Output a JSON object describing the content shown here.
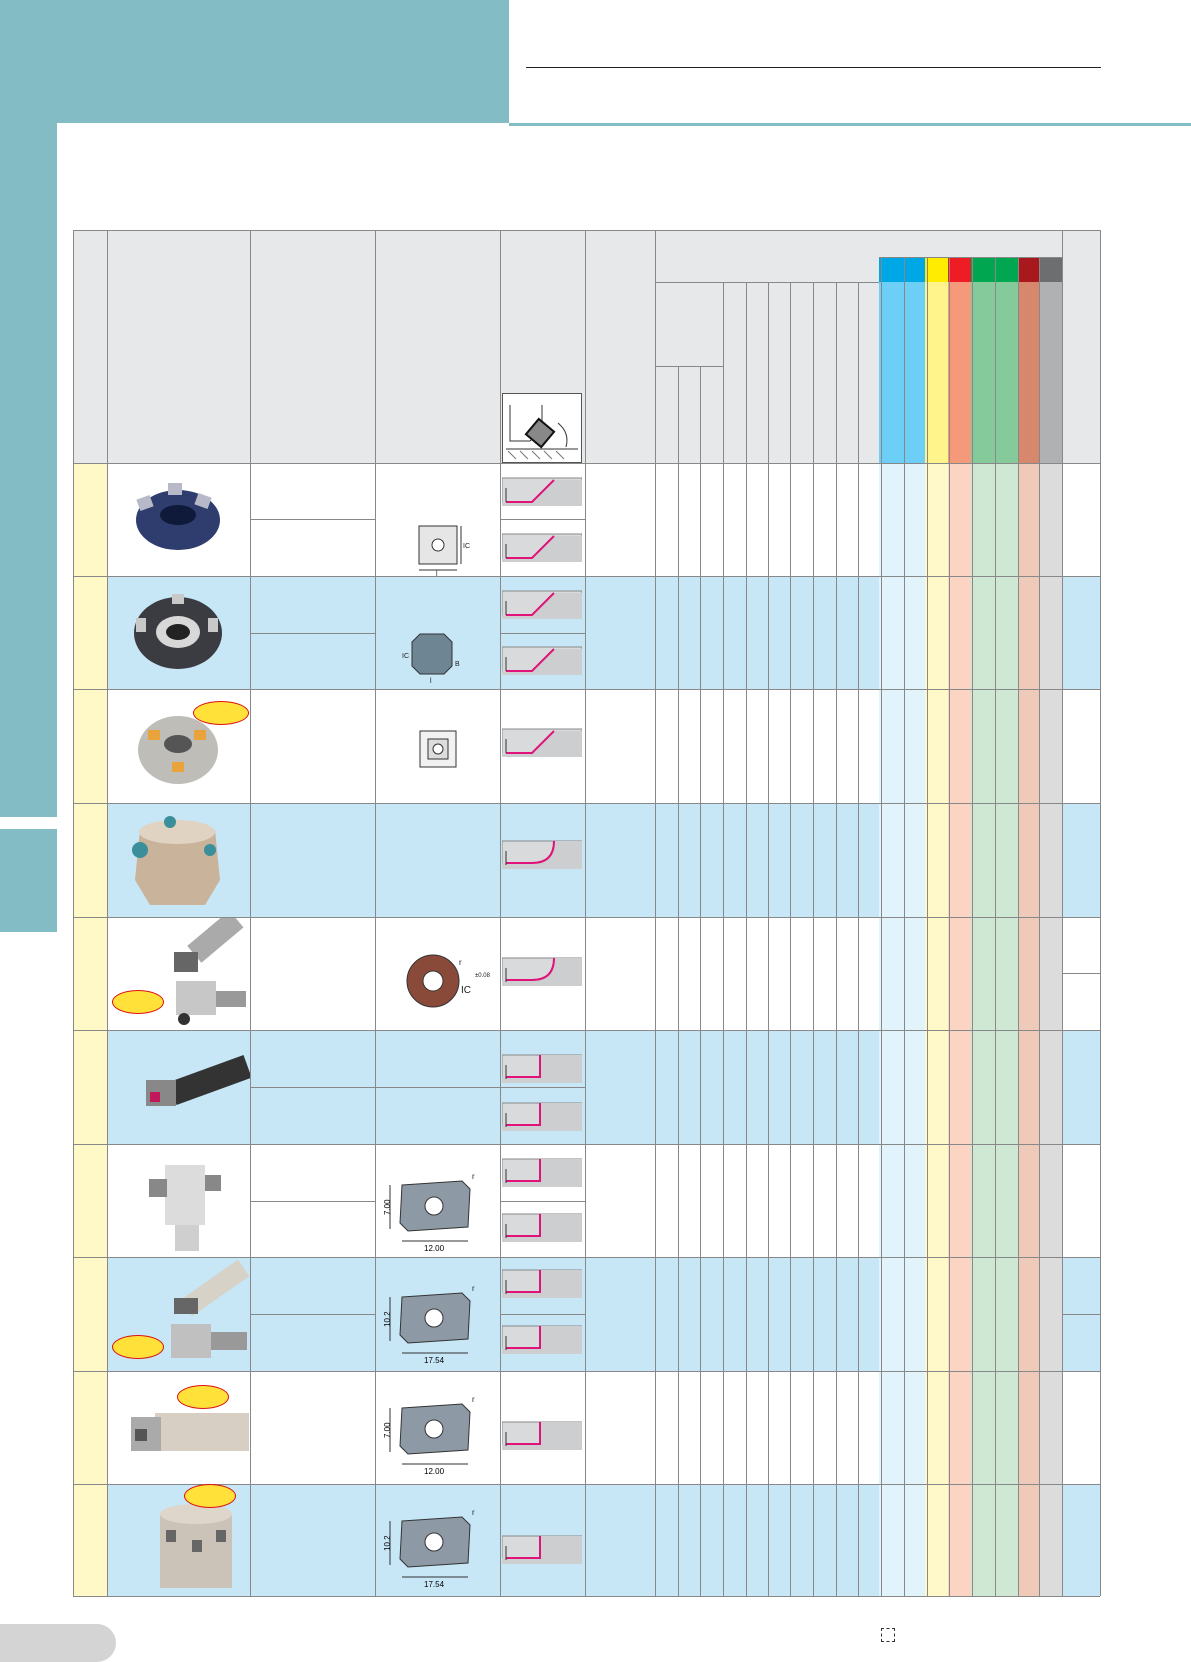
{
  "header": {
    "title": "",
    "subtitle": ""
  },
  "table": {
    "insert_dimension_labels": {
      "ic": "IC",
      "width": "l",
      "b": "B",
      "r": "r",
      "tolerance_round": "±0.08"
    },
    "insert_dimensions": {
      "small_length": "7.00",
      "small_width": "12.00",
      "large_length": "10.2",
      "large_width": "17.54"
    }
  },
  "colors": {
    "teal": "#84bcc6",
    "row_blue": "#c7e6f6",
    "row_white": "#ffffff",
    "group_yellow": "#fef9c6",
    "header_gray": "#e7e8ea",
    "profile_magenta": "#e0137a",
    "material_bands": [
      {
        "top": "#00a7e7",
        "body": "#6ecff6",
        "light": "#e1f4fc"
      },
      {
        "top": "#00a7e7",
        "body": "#6ecff6",
        "light": "#e1f4fc"
      },
      {
        "top": "#ffec00",
        "body": "#fff48c",
        "light": "#fff9c9"
      },
      {
        "top": "#ee1c25",
        "body": "#f49a7a",
        "light": "#fbd4c4"
      },
      {
        "top": "#00a650",
        "body": "#84ca9a",
        "light": "#cfe8d4"
      },
      {
        "top": "#00a650",
        "body": "#84ca9a",
        "light": "#cfe8d4"
      },
      {
        "top": "#a8191e",
        "body": "#d6876c",
        "light": "#f0cab9"
      },
      {
        "top": "#6d6e70",
        "body": "#b0b1b3",
        "light": "#dcdcdd"
      }
    ]
  },
  "icons": [
    "face-mill-icon",
    "square-insert-icon",
    "round-insert-icon",
    "lpmt-insert-icon",
    "cutting-profile-icon"
  ]
}
